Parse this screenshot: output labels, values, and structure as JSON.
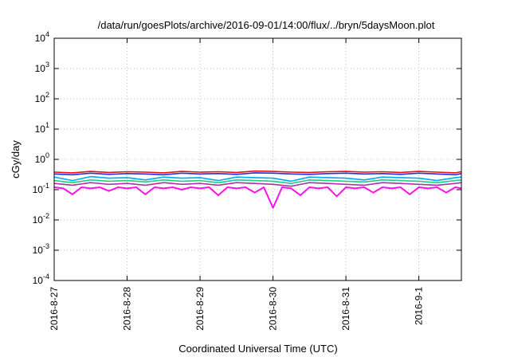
{
  "chart_data": {
    "type": "line",
    "title": "/data/run/goesPlots/archive/2016-09-01/14:00/flux/../bryn/5daysMoon.plot",
    "xlabel": "Coordinated Universal Time (UTC)",
    "ylabel": "cGy/day",
    "yscale": "log",
    "ylim": [
      0.0001,
      10000
    ],
    "xlim": [
      "2016-08-27T00:00",
      "2016-09-01T14:00"
    ],
    "y_ticks": [
      {
        "base": "10",
        "exp": "-4",
        "value": 0.0001
      },
      {
        "base": "10",
        "exp": "-3",
        "value": 0.001
      },
      {
        "base": "10",
        "exp": "-2",
        "value": 0.01
      },
      {
        "base": "10",
        "exp": "-1",
        "value": 0.1
      },
      {
        "base": "10",
        "exp": "0",
        "value": 1
      },
      {
        "base": "10",
        "exp": "1",
        "value": 10
      },
      {
        "base": "10",
        "exp": "2",
        "value": 100
      },
      {
        "base": "10",
        "exp": "3",
        "value": 1000
      },
      {
        "base": "10",
        "exp": "4",
        "value": 10000
      }
    ],
    "x_ticks": [
      {
        "label": "2016-8-27",
        "value": "2016-08-27T00:00"
      },
      {
        "label": "2016-8-28",
        "value": "2016-08-28T00:00"
      },
      {
        "label": "2016-8-29",
        "value": "2016-08-29T00:00"
      },
      {
        "label": "2016-8-30",
        "value": "2016-08-30T00:00"
      },
      {
        "label": "2016-8-31",
        "value": "2016-08-31T00:00"
      },
      {
        "label": "2016-9-1",
        "value": "2016-09-01T00:00"
      }
    ],
    "grid": true,
    "series": [
      {
        "color": "#ee1111",
        "x": [
          "2016-08-27T00:00",
          "2016-08-27T06:00",
          "2016-08-27T12:00",
          "2016-08-27T18:00",
          "2016-08-28T00:00",
          "2016-08-28T06:00",
          "2016-08-28T12:00",
          "2016-08-28T18:00",
          "2016-08-29T00:00",
          "2016-08-29T06:00",
          "2016-08-29T12:00",
          "2016-08-29T18:00",
          "2016-08-30T00:00",
          "2016-08-30T06:00",
          "2016-08-30T12:00",
          "2016-08-30T18:00",
          "2016-08-31T00:00",
          "2016-08-31T06:00",
          "2016-08-31T12:00",
          "2016-08-31T18:00",
          "2016-09-01T00:00",
          "2016-09-01T06:00",
          "2016-09-01T12:00",
          "2016-09-01T14:00"
        ],
        "values": [
          0.38,
          0.36,
          0.4,
          0.37,
          0.39,
          0.38,
          0.36,
          0.4,
          0.38,
          0.39,
          0.37,
          0.41,
          0.4,
          0.38,
          0.37,
          0.39,
          0.4,
          0.38,
          0.39,
          0.37,
          0.4,
          0.38,
          0.36,
          0.39
        ]
      },
      {
        "color": "#2233dd",
        "x": [
          "2016-08-27T00:00",
          "2016-08-27T06:00",
          "2016-08-27T12:00",
          "2016-08-27T18:00",
          "2016-08-28T00:00",
          "2016-08-28T06:00",
          "2016-08-28T12:00",
          "2016-08-28T18:00",
          "2016-08-29T00:00",
          "2016-08-29T06:00",
          "2016-08-29T12:00",
          "2016-08-29T18:00",
          "2016-08-30T00:00",
          "2016-08-30T06:00",
          "2016-08-30T12:00",
          "2016-08-30T18:00",
          "2016-08-31T00:00",
          "2016-08-31T06:00",
          "2016-08-31T12:00",
          "2016-08-31T18:00",
          "2016-09-01T00:00",
          "2016-09-01T06:00",
          "2016-09-01T12:00",
          "2016-09-01T14:00"
        ],
        "values": [
          0.33,
          0.31,
          0.35,
          0.32,
          0.34,
          0.33,
          0.31,
          0.35,
          0.33,
          0.34,
          0.32,
          0.36,
          0.35,
          0.33,
          0.32,
          0.34,
          0.35,
          0.33,
          0.34,
          0.32,
          0.35,
          0.33,
          0.31,
          0.34
        ]
      },
      {
        "color": "#00aaee",
        "x": [
          "2016-08-27T00:00",
          "2016-08-27T06:00",
          "2016-08-27T12:00",
          "2016-08-27T18:00",
          "2016-08-28T00:00",
          "2016-08-28T06:00",
          "2016-08-28T12:00",
          "2016-08-28T18:00",
          "2016-08-29T00:00",
          "2016-08-29T06:00",
          "2016-08-29T12:00",
          "2016-08-29T18:00",
          "2016-08-30T00:00",
          "2016-08-30T06:00",
          "2016-08-30T12:00",
          "2016-08-30T18:00",
          "2016-08-31T00:00",
          "2016-08-31T06:00",
          "2016-08-31T12:00",
          "2016-08-31T18:00",
          "2016-09-01T00:00",
          "2016-09-01T06:00",
          "2016-09-01T12:00",
          "2016-09-01T14:00"
        ],
        "values": [
          0.26,
          0.2,
          0.27,
          0.24,
          0.25,
          0.21,
          0.26,
          0.24,
          0.25,
          0.2,
          0.26,
          0.25,
          0.24,
          0.19,
          0.26,
          0.25,
          0.24,
          0.21,
          0.26,
          0.25,
          0.24,
          0.2,
          0.25,
          0.26
        ]
      },
      {
        "color": "#22cc88",
        "x": [
          "2016-08-27T00:00",
          "2016-08-27T06:00",
          "2016-08-27T12:00",
          "2016-08-27T18:00",
          "2016-08-28T00:00",
          "2016-08-28T06:00",
          "2016-08-28T12:00",
          "2016-08-28T18:00",
          "2016-08-29T00:00",
          "2016-08-29T06:00",
          "2016-08-29T12:00",
          "2016-08-29T18:00",
          "2016-08-30T00:00",
          "2016-08-30T06:00",
          "2016-08-30T12:00",
          "2016-08-30T18:00",
          "2016-08-31T00:00",
          "2016-08-31T06:00",
          "2016-08-31T12:00",
          "2016-08-31T18:00",
          "2016-09-01T00:00",
          "2016-09-01T06:00",
          "2016-09-01T12:00",
          "2016-09-01T14:00"
        ],
        "values": [
          0.2,
          0.17,
          0.21,
          0.19,
          0.2,
          0.18,
          0.21,
          0.19,
          0.2,
          0.17,
          0.21,
          0.2,
          0.19,
          0.16,
          0.21,
          0.2,
          0.19,
          0.18,
          0.21,
          0.2,
          0.19,
          0.17,
          0.2,
          0.21
        ]
      },
      {
        "color": "#aa33aa",
        "x": [
          "2016-08-27T00:00",
          "2016-08-27T06:00",
          "2016-08-27T12:00",
          "2016-08-27T18:00",
          "2016-08-28T00:00",
          "2016-08-28T06:00",
          "2016-08-28T12:00",
          "2016-08-28T18:00",
          "2016-08-29T00:00",
          "2016-08-29T06:00",
          "2016-08-29T12:00",
          "2016-08-29T18:00",
          "2016-08-30T00:00",
          "2016-08-30T06:00",
          "2016-08-30T12:00",
          "2016-08-30T18:00",
          "2016-08-31T00:00",
          "2016-08-31T06:00",
          "2016-08-31T12:00",
          "2016-08-31T18:00",
          "2016-09-01T00:00",
          "2016-09-01T06:00",
          "2016-09-01T12:00",
          "2016-09-01T14:00"
        ],
        "values": [
          0.16,
          0.14,
          0.17,
          0.15,
          0.16,
          0.14,
          0.17,
          0.15,
          0.16,
          0.14,
          0.17,
          0.16,
          0.15,
          0.13,
          0.17,
          0.16,
          0.15,
          0.14,
          0.17,
          0.16,
          0.15,
          0.14,
          0.16,
          0.17
        ]
      },
      {
        "color": "#ff11ee",
        "x": [
          "2016-08-27T00:00",
          "2016-08-27T03:00",
          "2016-08-27T06:00",
          "2016-08-27T09:00",
          "2016-08-27T12:00",
          "2016-08-27T15:00",
          "2016-08-27T18:00",
          "2016-08-27T21:00",
          "2016-08-28T00:00",
          "2016-08-28T03:00",
          "2016-08-28T06:00",
          "2016-08-28T09:00",
          "2016-08-28T12:00",
          "2016-08-28T15:00",
          "2016-08-28T18:00",
          "2016-08-28T21:00",
          "2016-08-29T00:00",
          "2016-08-29T03:00",
          "2016-08-29T06:00",
          "2016-08-29T09:00",
          "2016-08-29T12:00",
          "2016-08-29T15:00",
          "2016-08-29T18:00",
          "2016-08-29T21:00",
          "2016-08-30T00:00",
          "2016-08-30T03:00",
          "2016-08-30T06:00",
          "2016-08-30T09:00",
          "2016-08-30T12:00",
          "2016-08-30T15:00",
          "2016-08-30T18:00",
          "2016-08-30T21:00",
          "2016-08-31T00:00",
          "2016-08-31T03:00",
          "2016-08-31T06:00",
          "2016-08-31T09:00",
          "2016-08-31T12:00",
          "2016-08-31T15:00",
          "2016-08-31T18:00",
          "2016-08-31T21:00",
          "2016-09-01T00:00",
          "2016-09-01T03:00",
          "2016-09-01T06:00",
          "2016-09-01T09:00",
          "2016-09-01T12:00",
          "2016-09-01T14:00"
        ],
        "values": [
          0.12,
          0.11,
          0.07,
          0.12,
          0.11,
          0.12,
          0.09,
          0.12,
          0.11,
          0.12,
          0.07,
          0.12,
          0.11,
          0.12,
          0.1,
          0.12,
          0.11,
          0.12,
          0.065,
          0.12,
          0.11,
          0.12,
          0.08,
          0.12,
          0.025,
          0.12,
          0.11,
          0.065,
          0.12,
          0.11,
          0.12,
          0.06,
          0.12,
          0.11,
          0.12,
          0.08,
          0.12,
          0.11,
          0.12,
          0.07,
          0.12,
          0.11,
          0.12,
          0.08,
          0.12,
          0.11
        ]
      }
    ]
  }
}
